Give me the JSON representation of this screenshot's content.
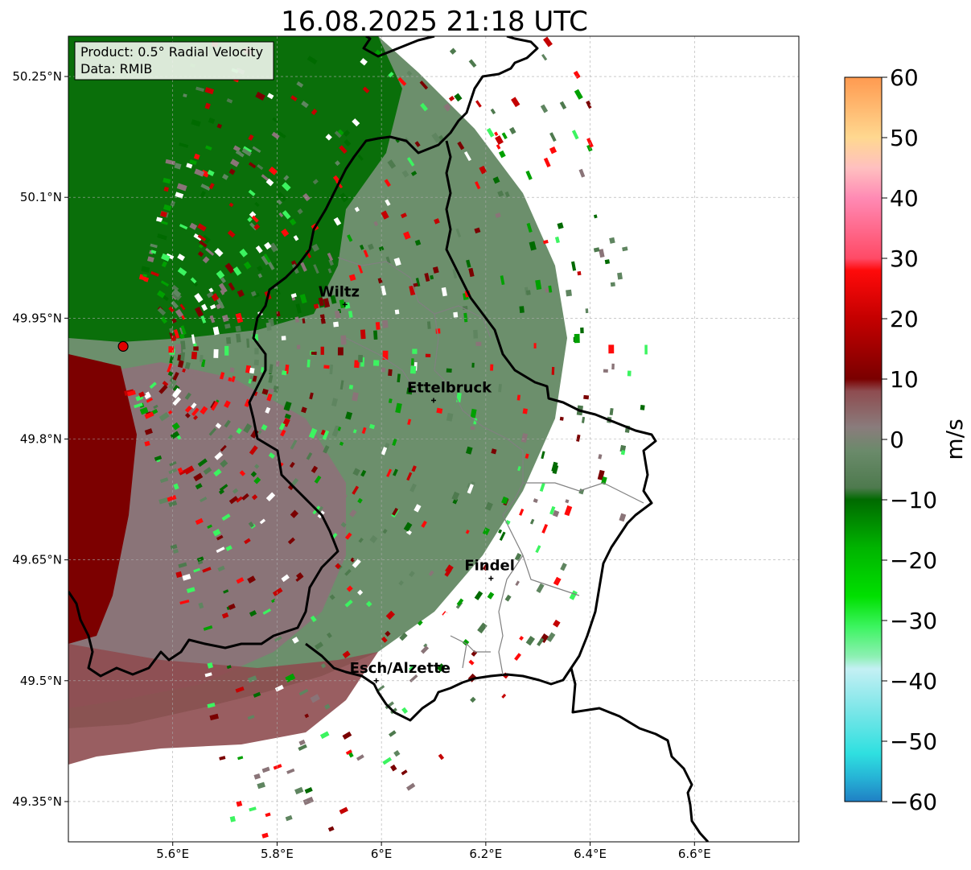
{
  "title": "16.08.2025 21:18 UTC",
  "info": {
    "product": "Product: 0.5° Radial Velocity",
    "data": "Data: RMIB"
  },
  "map": {
    "lon_range": [
      5.4,
      6.8
    ],
    "lat_range": [
      49.3,
      50.3
    ],
    "x_ticks": [
      {
        "lon": 5.6,
        "label": "5.6°E"
      },
      {
        "lon": 5.8,
        "label": "5.8°E"
      },
      {
        "lon": 6.0,
        "label": "6°E"
      },
      {
        "lon": 6.2,
        "label": "6.2°E"
      },
      {
        "lon": 6.4,
        "label": "6.4°E"
      },
      {
        "lon": 6.6,
        "label": "6.6°E"
      }
    ],
    "y_ticks": [
      {
        "lat": 50.25,
        "label": "50.25°N"
      },
      {
        "lat": 50.1,
        "label": "50.1°N"
      },
      {
        "lat": 49.95,
        "label": "49.95°N"
      },
      {
        "lat": 49.8,
        "label": "49.8°N"
      },
      {
        "lat": 49.65,
        "label": "49.65°N"
      },
      {
        "lat": 49.5,
        "label": "49.5°N"
      },
      {
        "lat": 49.35,
        "label": "49.35°N"
      }
    ],
    "radar_site": {
      "lon": 5.505,
      "lat": 49.915
    },
    "cities": [
      {
        "name": "Wiltz",
        "lon": 5.93,
        "lat": 49.967
      },
      {
        "name": "Ettelbruck",
        "lon": 6.1,
        "lat": 49.848
      },
      {
        "name": "Findel",
        "lon": 6.21,
        "lat": 49.627
      },
      {
        "name": "Esch/Alzette",
        "lon": 5.99,
        "lat": 49.5
      }
    ]
  },
  "colorbar": {
    "label": "m/s",
    "min": -60,
    "max": 60,
    "ticks": [
      {
        "value": 60,
        "label": "60"
      },
      {
        "value": 50,
        "label": "50"
      },
      {
        "value": 40,
        "label": "40"
      },
      {
        "value": 30,
        "label": "30"
      },
      {
        "value": 20,
        "label": "20"
      },
      {
        "value": 10,
        "label": "10"
      },
      {
        "value": 0,
        "label": "0"
      },
      {
        "value": -10,
        "label": "−10"
      },
      {
        "value": -20,
        "label": "−20"
      },
      {
        "value": -30,
        "label": "−30"
      },
      {
        "value": -40,
        "label": "−40"
      },
      {
        "value": -50,
        "label": "−50"
      },
      {
        "value": -60,
        "label": "−60"
      }
    ],
    "stops": [
      {
        "value": -60,
        "color": "#1f7fc4"
      },
      {
        "value": -56,
        "color": "#26b4d6"
      },
      {
        "value": -52,
        "color": "#2fe0e0"
      },
      {
        "value": -45,
        "color": "#7ae6e8"
      },
      {
        "value": -38,
        "color": "#c4f0f4"
      },
      {
        "value": -36,
        "color": "#8ef0b4"
      },
      {
        "value": -31,
        "color": "#3cf460"
      },
      {
        "value": -26,
        "color": "#00e000"
      },
      {
        "value": -18,
        "color": "#00b400"
      },
      {
        "value": -10,
        "color": "#006a00"
      },
      {
        "value": -8,
        "color": "#4e7a4e"
      },
      {
        "value": -2,
        "color": "#6a8a6a"
      },
      {
        "value": 2,
        "color": "#8a7c7c"
      },
      {
        "value": 8,
        "color": "#8e4c50"
      },
      {
        "value": 10,
        "color": "#7a0000"
      },
      {
        "value": 20,
        "color": "#c40000"
      },
      {
        "value": 28,
        "color": "#ff0a0a"
      },
      {
        "value": 30,
        "color": "#ff4a66"
      },
      {
        "value": 40,
        "color": "#ff8ab4"
      },
      {
        "value": 45,
        "color": "#ffc0c0"
      },
      {
        "value": 50,
        "color": "#ffd890"
      },
      {
        "value": 60,
        "color": "#ff9a50"
      }
    ]
  }
}
